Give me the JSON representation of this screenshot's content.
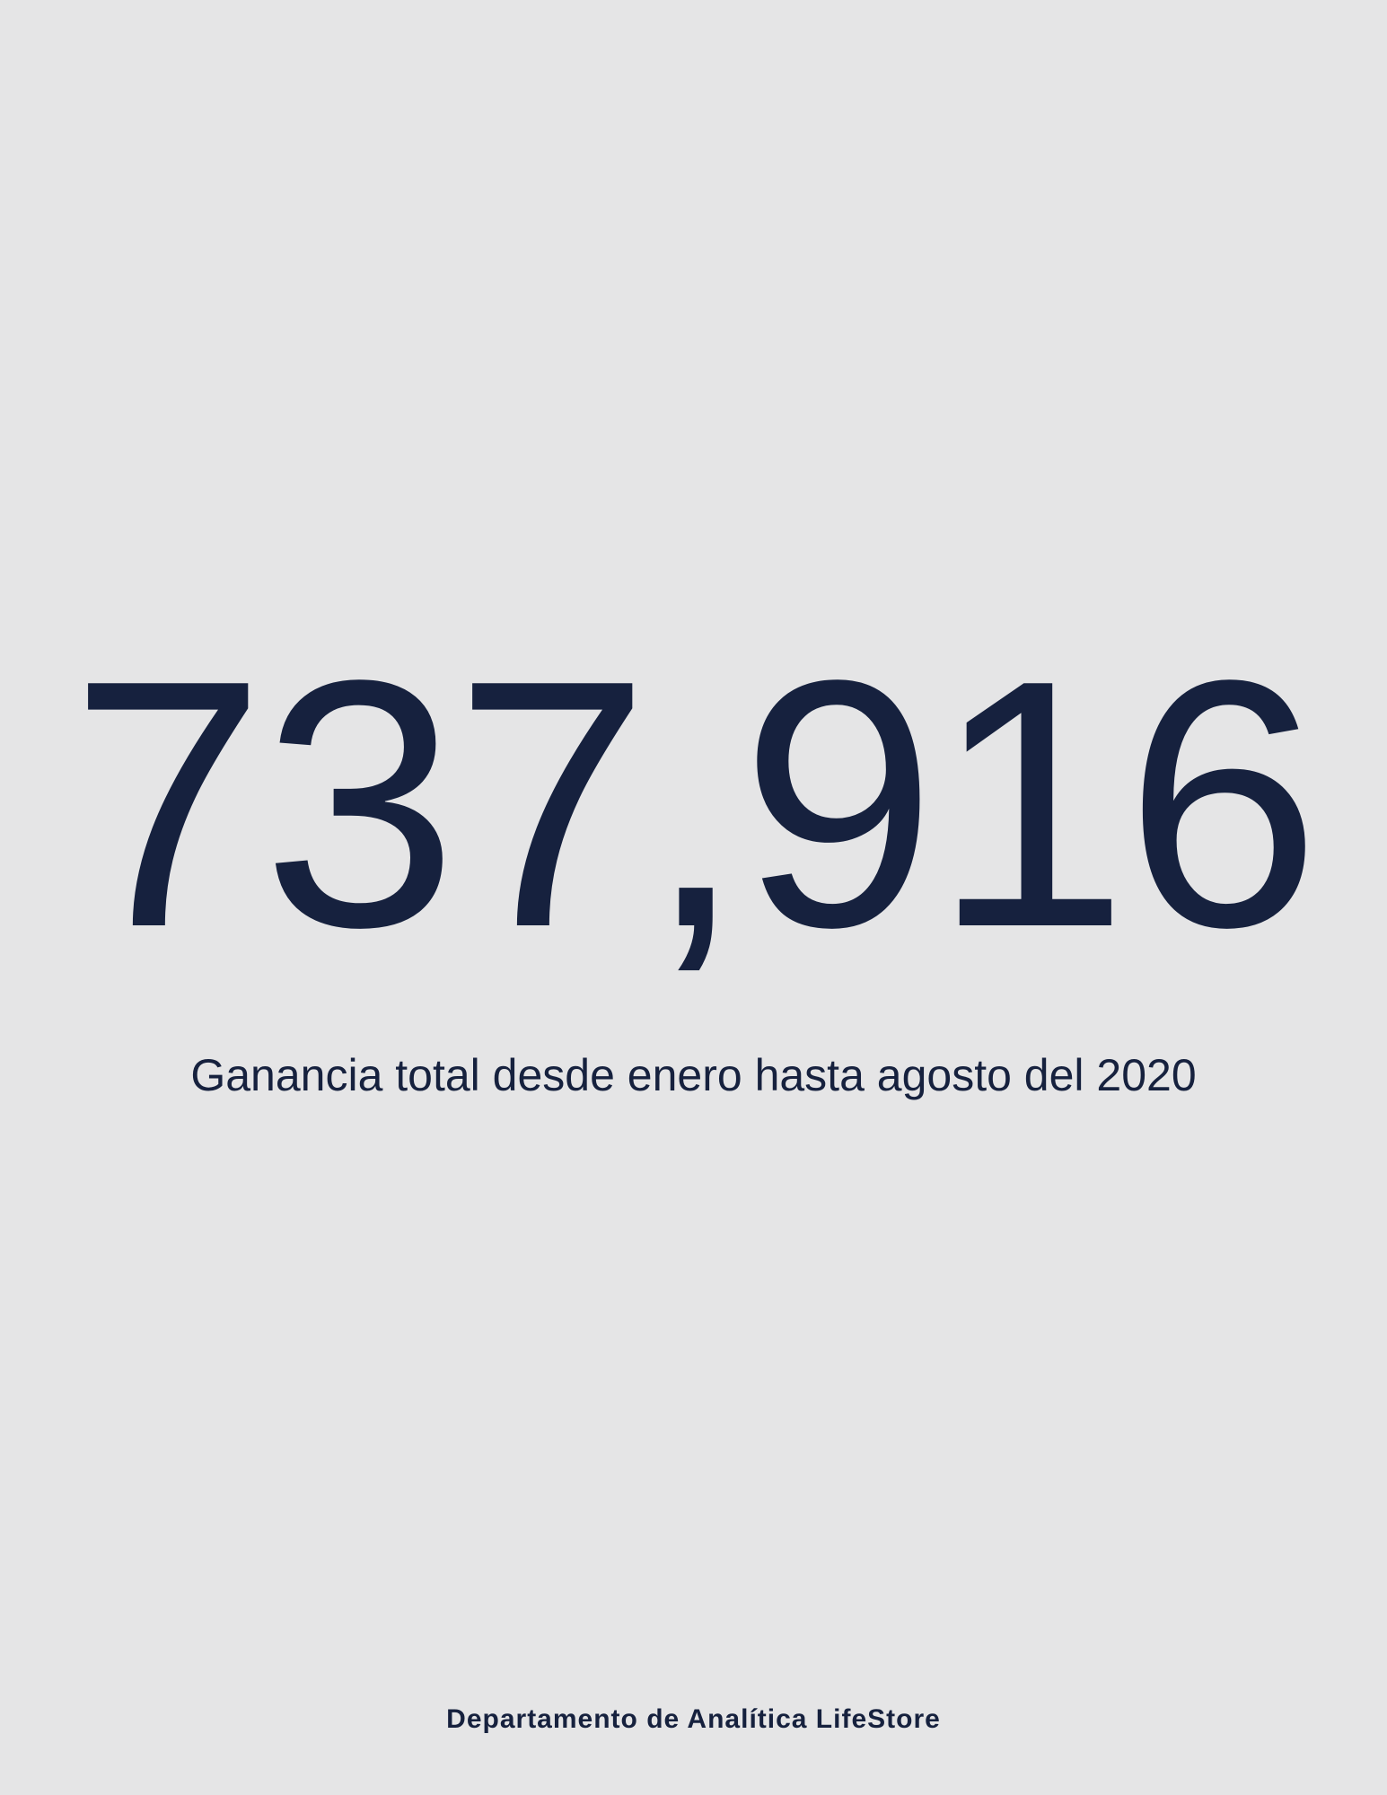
{
  "headline": {
    "value": "737,916",
    "caption": "Ganancia total desde enero hasta agosto del 2020"
  },
  "footer": {
    "text": "Departamento de Analítica LifeStore"
  }
}
